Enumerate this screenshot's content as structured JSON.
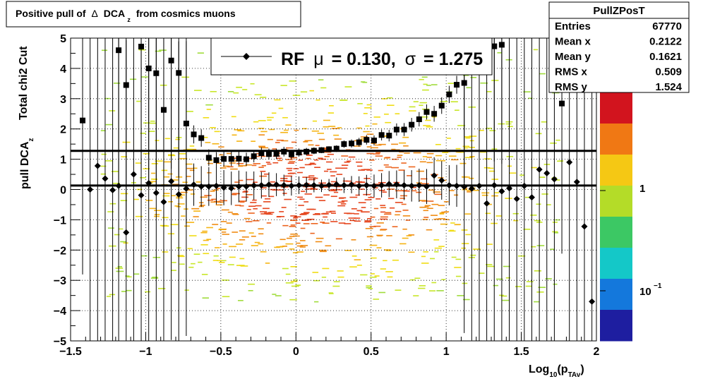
{
  "title": {
    "prefix": "Positive pull of",
    "delta": "Δ",
    "dca": "DCA",
    "sub": "z",
    "suffix": "from cosmics muons"
  },
  "stats_box": {
    "name": "PullZPosT",
    "rows": [
      {
        "label": "Entries",
        "value": "67770"
      },
      {
        "label": "Mean x",
        "value": "0.2122"
      },
      {
        "label": "Mean y",
        "value": "0.1621"
      },
      {
        "label": "RMS x",
        "value": "0.509"
      },
      {
        "label": "RMS y",
        "value": "1.524"
      }
    ]
  },
  "legend": {
    "rf": "RF",
    "mu_symbol": "μ",
    "mu_text": "=  0.130,",
    "sigma_symbol": "σ",
    "sigma_text": "=   1.275"
  },
  "axes": {
    "xlabel_main": "Log",
    "xlabel_sub": "10",
    "xlabel_p": "(p",
    "xlabel_psub": "TAv",
    "xlabel_close": ")",
    "ylabel_line1": "Total chi2 Cut",
    "ylabel_line2_main": "pull DCA",
    "ylabel_line2_sub": "z"
  },
  "colorbar": {
    "labels": [
      {
        "main": "1",
        "exp": ""
      },
      {
        "main": "10",
        "exp": "−1"
      }
    ],
    "colors": [
      "#d2141e",
      "#f07814",
      "#f5c814",
      "#b4dc28",
      "#3cc864",
      "#14c8c8",
      "#1478dc",
      "#1e1ea0"
    ]
  },
  "chart_data": {
    "type": "scatter",
    "xlim": [
      -1.5,
      2
    ],
    "ylim": [
      -5,
      5
    ],
    "x_ticks": [
      "−1.5",
      "−1",
      "−0.5",
      "0",
      "0.5",
      "1",
      "1.5",
      "2"
    ],
    "y_ticks": [
      "5",
      "4",
      "3",
      "2",
      "1",
      "0",
      "−1",
      "−2",
      "−3",
      "−4",
      "−5"
    ],
    "grid": true,
    "fit_lines": {
      "mean": 0.13,
      "sigma": 1.275
    },
    "mean_series": [
      {
        "x": -1.37,
        "y": 0.0
      },
      {
        "x": -1.32,
        "y": 0.78
      },
      {
        "x": -1.27,
        "y": 0.36
      },
      {
        "x": -1.22,
        "y": -0.02
      },
      {
        "x": -1.18,
        "y": 0.12
      },
      {
        "x": -1.13,
        "y": -1.42
      },
      {
        "x": -1.08,
        "y": 0.5
      },
      {
        "x": -1.03,
        "y": -0.19
      },
      {
        "x": -0.98,
        "y": 0.21
      },
      {
        "x": -0.93,
        "y": -0.11
      },
      {
        "x": -0.88,
        "y": -0.41
      },
      {
        "x": -0.83,
        "y": 0.27
      },
      {
        "x": -0.78,
        "y": -0.16
      },
      {
        "x": -0.73,
        "y": 0.03
      },
      {
        "x": -0.68,
        "y": 0.16
      },
      {
        "x": -0.63,
        "y": 0.1
      },
      {
        "x": -0.58,
        "y": 0.1
      },
      {
        "x": -0.53,
        "y": 0.12
      },
      {
        "x": -0.48,
        "y": 0.06
      },
      {
        "x": -0.43,
        "y": 0.04
      },
      {
        "x": -0.38,
        "y": 0.1
      },
      {
        "x": -0.33,
        "y": 0.1
      },
      {
        "x": -0.28,
        "y": 0.13
      },
      {
        "x": -0.23,
        "y": 0.14
      },
      {
        "x": -0.18,
        "y": 0.16
      },
      {
        "x": -0.13,
        "y": 0.16
      },
      {
        "x": -0.08,
        "y": 0.14
      },
      {
        "x": -0.03,
        "y": 0.12
      },
      {
        "x": 0.02,
        "y": 0.14
      },
      {
        "x": 0.07,
        "y": 0.15
      },
      {
        "x": 0.12,
        "y": 0.14
      },
      {
        "x": 0.17,
        "y": 0.12
      },
      {
        "x": 0.22,
        "y": 0.15
      },
      {
        "x": 0.27,
        "y": 0.17
      },
      {
        "x": 0.32,
        "y": 0.14
      },
      {
        "x": 0.37,
        "y": 0.16
      },
      {
        "x": 0.42,
        "y": 0.12
      },
      {
        "x": 0.47,
        "y": 0.14
      },
      {
        "x": 0.52,
        "y": 0.12
      },
      {
        "x": 0.57,
        "y": 0.14
      },
      {
        "x": 0.62,
        "y": 0.18
      },
      {
        "x": 0.67,
        "y": 0.17
      },
      {
        "x": 0.72,
        "y": 0.14
      },
      {
        "x": 0.77,
        "y": 0.12
      },
      {
        "x": 0.82,
        "y": 0.14
      },
      {
        "x": 0.87,
        "y": 0.1
      },
      {
        "x": 0.92,
        "y": 0.46
      },
      {
        "x": 0.97,
        "y": 0.3
      },
      {
        "x": 1.02,
        "y": 0.14
      },
      {
        "x": 1.07,
        "y": 0.12
      },
      {
        "x": 1.12,
        "y": 0.09
      },
      {
        "x": 1.17,
        "y": 0.03
      },
      {
        "x": 1.22,
        "y": 0.12
      },
      {
        "x": 1.27,
        "y": -0.46
      },
      {
        "x": 1.32,
        "y": 0.14
      },
      {
        "x": 1.37,
        "y": -0.06
      },
      {
        "x": 1.42,
        "y": 0.04
      },
      {
        "x": 1.47,
        "y": -0.31
      },
      {
        "x": 1.52,
        "y": 0.12
      },
      {
        "x": 1.57,
        "y": -0.26
      },
      {
        "x": 1.62,
        "y": 0.66
      },
      {
        "x": 1.67,
        "y": 0.54
      },
      {
        "x": 1.72,
        "y": 0.34
      },
      {
        "x": 1.82,
        "y": 0.9
      },
      {
        "x": 1.87,
        "y": 0.25
      },
      {
        "x": 1.92,
        "y": -1.22
      },
      {
        "x": 1.97,
        "y": -3.7
      }
    ],
    "sigma_series": [
      {
        "x": -1.42,
        "y": 2.28
      },
      {
        "x": -1.18,
        "y": 4.6
      },
      {
        "x": -1.13,
        "y": 3.45
      },
      {
        "x": -1.03,
        "y": 4.72
      },
      {
        "x": -0.98,
        "y": 4.0
      },
      {
        "x": -0.93,
        "y": 3.84
      },
      {
        "x": -0.88,
        "y": 2.63
      },
      {
        "x": -0.83,
        "y": 4.26
      },
      {
        "x": -0.78,
        "y": 3.85
      },
      {
        "x": -0.73,
        "y": 2.18
      },
      {
        "x": -0.68,
        "y": 1.82
      },
      {
        "x": -0.63,
        "y": 1.7
      },
      {
        "x": -0.58,
        "y": 1.05
      },
      {
        "x": -0.53,
        "y": 0.97
      },
      {
        "x": -0.48,
        "y": 1.01
      },
      {
        "x": -0.43,
        "y": 1.01
      },
      {
        "x": -0.38,
        "y": 1.02
      },
      {
        "x": -0.33,
        "y": 1.0
      },
      {
        "x": -0.28,
        "y": 1.1
      },
      {
        "x": -0.23,
        "y": 1.2
      },
      {
        "x": -0.18,
        "y": 1.17
      },
      {
        "x": -0.13,
        "y": 1.18
      },
      {
        "x": -0.08,
        "y": 1.25
      },
      {
        "x": -0.03,
        "y": 1.16
      },
      {
        "x": 0.02,
        "y": 1.22
      },
      {
        "x": 0.07,
        "y": 1.25
      },
      {
        "x": 0.12,
        "y": 1.28
      },
      {
        "x": 0.17,
        "y": 1.3
      },
      {
        "x": 0.22,
        "y": 1.33
      },
      {
        "x": 0.27,
        "y": 1.35
      },
      {
        "x": 0.32,
        "y": 1.5
      },
      {
        "x": 0.37,
        "y": 1.52
      },
      {
        "x": 0.42,
        "y": 1.56
      },
      {
        "x": 0.47,
        "y": 1.64
      },
      {
        "x": 0.52,
        "y": 1.62
      },
      {
        "x": 0.57,
        "y": 1.8
      },
      {
        "x": 0.62,
        "y": 1.78
      },
      {
        "x": 0.67,
        "y": 1.98
      },
      {
        "x": 0.72,
        "y": 1.98
      },
      {
        "x": 0.77,
        "y": 2.14
      },
      {
        "x": 0.82,
        "y": 2.32
      },
      {
        "x": 0.87,
        "y": 2.56
      },
      {
        "x": 0.92,
        "y": 2.5
      },
      {
        "x": 0.97,
        "y": 2.77
      },
      {
        "x": 1.02,
        "y": 3.14
      },
      {
        "x": 1.07,
        "y": 3.46
      },
      {
        "x": 1.12,
        "y": 3.52
      },
      {
        "x": 1.32,
        "y": 4.73
      },
      {
        "x": 1.37,
        "y": 4.78
      },
      {
        "x": 1.77,
        "y": 2.84
      }
    ]
  }
}
